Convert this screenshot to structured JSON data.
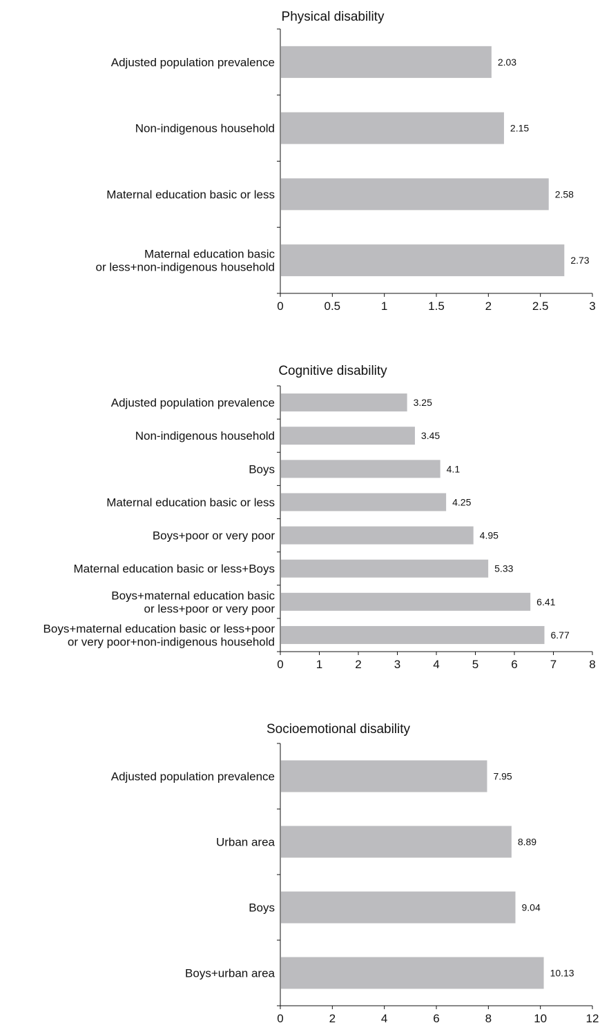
{
  "chart_data": [
    {
      "type": "bar",
      "orientation": "horizontal",
      "title": "Physical disability",
      "categories": [
        "Adjusted population prevalence",
        "Non-indigenous household",
        "Maternal education basic or less",
        "Maternal education basic\nor less+non-indigenous household"
      ],
      "values": [
        2.03,
        2.15,
        2.58,
        2.73
      ],
      "value_labels": [
        "2.03",
        "2.15",
        "2.58",
        "2.73"
      ],
      "xlim": [
        0,
        3
      ],
      "ticks": [
        0,
        0.5,
        1,
        1.5,
        2,
        2.5,
        3
      ],
      "tick_labels": [
        "0",
        "0.5",
        "1",
        "1.5",
        "2",
        "2.5",
        "3"
      ],
      "grid": false,
      "bar_color": "#bcbcbf"
    },
    {
      "type": "bar",
      "orientation": "horizontal",
      "title": "Cognitive disability",
      "categories": [
        "Adjusted population prevalence",
        "Non-indigenous household",
        "Boys",
        "Maternal education basic or less",
        "Boys+poor or very poor",
        "Maternal education basic or less+Boys",
        "Boys+maternal education basic\nor less+poor or very poor",
        "Boys+maternal education basic or less+poor\nor very poor+non-indigenous household"
      ],
      "values": [
        3.25,
        3.45,
        4.1,
        4.25,
        4.95,
        5.33,
        6.41,
        6.77
      ],
      "value_labels": [
        "3.25",
        "3.45",
        "4.1",
        "4.25",
        "4.95",
        "5.33",
        "6.41",
        "6.77"
      ],
      "xlim": [
        0,
        8
      ],
      "ticks": [
        0,
        1,
        2,
        3,
        4,
        5,
        6,
        7,
        8
      ],
      "tick_labels": [
        "0",
        "1",
        "2",
        "3",
        "4",
        "5",
        "6",
        "7",
        "8"
      ],
      "grid": false,
      "bar_color": "#bcbcbf"
    },
    {
      "type": "bar",
      "orientation": "horizontal",
      "title": "Socioemotional disability",
      "categories": [
        "Adjusted population prevalence",
        "Urban area",
        "Boys",
        "Boys+urban area"
      ],
      "values": [
        7.95,
        8.89,
        9.04,
        10.13
      ],
      "value_labels": [
        "7.95",
        "8.89",
        "9.04",
        "10.13"
      ],
      "xlim": [
        0,
        12
      ],
      "ticks": [
        0,
        2,
        4,
        6,
        8,
        10,
        12
      ],
      "tick_labels": [
        "0",
        "2",
        "4",
        "6",
        "8",
        "10",
        "12"
      ],
      "grid": false,
      "bar_color": "#bcbcbf"
    }
  ]
}
